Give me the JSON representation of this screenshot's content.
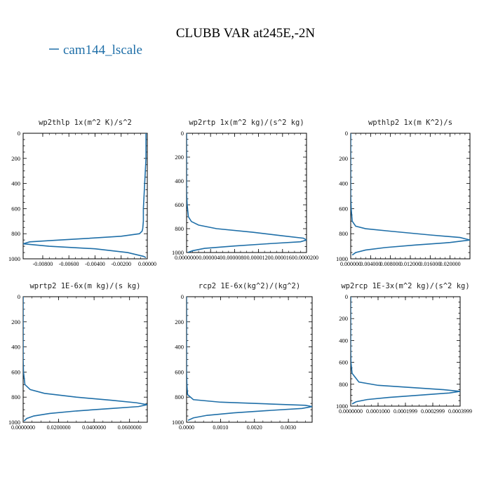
{
  "figure": {
    "title": "CLUBB VAR at245E,-2N",
    "legend_label": "cam144_lscale",
    "line_color": "#1f6fa8"
  },
  "chart_data": [
    {
      "type": "line",
      "title": "wp2thlp  1x(m^2 K)/s^2",
      "ylim": [
        1000,
        0
      ],
      "yticks": [
        "0",
        "200",
        "400",
        "600",
        "800",
        "1000"
      ],
      "xlim": [
        -0.0095,
        0.0
      ],
      "xticks": [
        "-0.00800",
        "-0.00600",
        "-0.00400",
        "-0.00200",
        "0.00000"
      ],
      "xtick_values": [
        -0.008,
        -0.006,
        -0.004,
        -0.002,
        0.0
      ],
      "series": [
        {
          "x": [
            -0.0001,
            -0.0001,
            -0.0001,
            -0.00015,
            -0.0002,
            -0.00025,
            -0.0003,
            -0.0003,
            -0.00035,
            -0.0004,
            -0.0006,
            -0.002,
            -0.005,
            -0.0075,
            -0.009,
            -0.0095,
            -0.0075,
            -0.004,
            -0.0015,
            -0.0003,
            -0.0001
          ],
          "y": [
            0,
            100,
            200,
            300,
            400,
            500,
            600,
            700,
            760,
            780,
            800,
            820,
            840,
            855,
            865,
            880,
            900,
            920,
            950,
            980,
            990
          ]
        }
      ]
    },
    {
      "type": "line",
      "title": "wp2rtp  1x(m^2 kg)/(s^2 kg)",
      "ylim": [
        1000,
        0
      ],
      "yticks": [
        "0",
        "200",
        "400",
        "600",
        "800",
        "1000"
      ],
      "xlim": [
        0.0,
        2e-05
      ],
      "xticks": [
        "0.0000000",
        "0.0000040",
        "0.0000080",
        "0.0000120",
        "0.0000160",
        "0.0000200"
      ],
      "xtick_values": [
        0.0,
        4e-06,
        8e-06,
        1.2e-05,
        1.6e-05,
        2e-05
      ],
      "series": [
        {
          "x": [
            0,
            0,
            0,
            0,
            0,
            0,
            1e-07,
            3e-07,
            8e-07,
            2e-06,
            5e-06,
            1.1e-05,
            1.6e-05,
            1.95e-05,
            2e-05,
            1.9e-05,
            1.4e-05,
            8e-06,
            3e-06,
            1e-06,
            2e-07
          ],
          "y": [
            0,
            100,
            200,
            300,
            400,
            500,
            600,
            700,
            740,
            770,
            800,
            830,
            860,
            880,
            895,
            910,
            925,
            945,
            965,
            985,
            1000
          ]
        }
      ]
    },
    {
      "type": "line",
      "title": "wpthlp2  1x(m K^2)/s",
      "ylim": [
        1000,
        0
      ],
      "yticks": [
        "0",
        "200",
        "400",
        "600",
        "800",
        "1000"
      ],
      "xlim": [
        0.0,
        0.024
      ],
      "xticks": [
        "0.000000",
        "0.004000",
        "0.008000",
        "0.012000",
        "0.016000",
        "0.020000"
      ],
      "xtick_values": [
        0.0,
        0.004,
        0.008,
        0.012,
        0.016,
        0.02
      ],
      "series": [
        {
          "x": [
            0,
            0,
            0,
            0,
            0,
            0,
            0.0001,
            0.0003,
            0.001,
            0.003,
            0.008,
            0.016,
            0.022,
            0.024,
            0.02,
            0.013,
            0.007,
            0.003,
            0.001,
            0.0003
          ],
          "y": [
            0,
            100,
            200,
            300,
            400,
            500,
            600,
            700,
            740,
            760,
            780,
            810,
            830,
            850,
            870,
            890,
            910,
            930,
            950,
            970
          ]
        }
      ]
    },
    {
      "type": "line",
      "title": "wprtp2  1E-6x(m kg)/(s kg)",
      "ylim": [
        1000,
        0
      ],
      "yticks": [
        "0",
        "200",
        "400",
        "600",
        "800",
        "1000"
      ],
      "xlim": [
        0.0,
        0.07
      ],
      "xticks": [
        "0.0000000",
        "0.0200000",
        "0.0400000",
        "0.0600000"
      ],
      "xtick_values": [
        0.0,
        0.02,
        0.04,
        0.06
      ],
      "series": [
        {
          "x": [
            0,
            0,
            0,
            0,
            0,
            0,
            0.0002,
            0.001,
            0.004,
            0.012,
            0.03,
            0.05,
            0.064,
            0.07,
            0.065,
            0.05,
            0.03,
            0.015,
            0.006,
            0.002,
            0.0005
          ],
          "y": [
            0,
            100,
            200,
            300,
            400,
            500,
            600,
            700,
            740,
            770,
            800,
            825,
            845,
            860,
            875,
            890,
            910,
            930,
            950,
            970,
            990
          ]
        }
      ]
    },
    {
      "type": "line",
      "title": "rcp2  1E-6x(kg^2)/(kg^2)",
      "ylim": [
        1000,
        0
      ],
      "yticks": [
        "0",
        "200",
        "400",
        "600",
        "800",
        "1000"
      ],
      "xlim": [
        0.0,
        0.0037
      ],
      "xticks": [
        "0.0000",
        "0.0010",
        "0.0020",
        "0.0030"
      ],
      "xtick_values": [
        0.0,
        0.001,
        0.002,
        0.003
      ],
      "series": [
        {
          "x": [
            0,
            0,
            0,
            0,
            0,
            0,
            0,
            1e-05,
            3e-05,
            0.0002,
            0.001,
            0.0025,
            0.0035,
            0.0037,
            0.0034,
            0.0025,
            0.0014,
            0.0006,
            0.0002,
            4e-05
          ],
          "y": [
            0,
            100,
            200,
            300,
            400,
            500,
            600,
            700,
            780,
            820,
            840,
            855,
            865,
            875,
            890,
            905,
            925,
            945,
            965,
            985
          ]
        }
      ]
    },
    {
      "type": "line",
      "title": "wp2rcp  1E-3x(m^2 kg)/(s^2 kg)",
      "ylim": [
        1000,
        0
      ],
      "yticks": [
        "0",
        "200",
        "400",
        "600",
        "800",
        "1000"
      ],
      "xlim": [
        0.0,
        0.0004
      ],
      "xticks": [
        "0.0000000",
        "0.0001000",
        "0.0001999",
        "0.0002999",
        "0.0003999"
      ],
      "xtick_values": [
        0.0,
        0.0001,
        0.0002,
        0.0003,
        0.0004
      ],
      "series": [
        {
          "x": [
            0,
            0,
            0,
            0,
            0,
            0,
            1e-06,
            5e-06,
            3e-05,
            0.0001,
            0.00022,
            0.00034,
            0.0004,
            0.00036,
            0.00025,
            0.00014,
            6e-05,
            2e-05,
            5e-06
          ],
          "y": [
            0,
            100,
            200,
            300,
            400,
            500,
            600,
            700,
            780,
            810,
            830,
            850,
            865,
            880,
            900,
            920,
            940,
            960,
            980
          ]
        }
      ]
    }
  ]
}
